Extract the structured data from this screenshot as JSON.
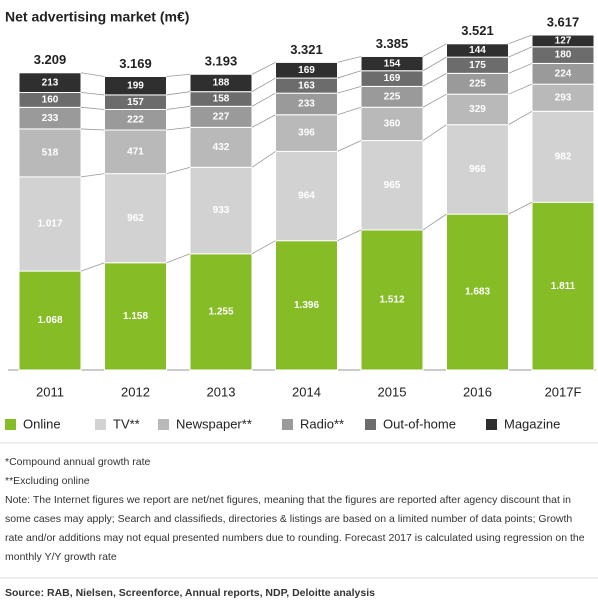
{
  "chart_data": {
    "type": "stacked-bar",
    "title": "Net advertising market (m€)",
    "categories": [
      "2011",
      "2012",
      "2013",
      "2014",
      "2015",
      "2016",
      "2017F"
    ],
    "series": [
      {
        "name": "Online",
        "color": "#86bc25",
        "values": [
          1068,
          1158,
          1255,
          1396,
          1512,
          1683,
          1811
        ],
        "value_labels": [
          "1.068",
          "1.158",
          "1.255",
          "1.396",
          "1.512",
          "1.683",
          "1.811"
        ]
      },
      {
        "name": "TV**",
        "color": "#d2d2d2",
        "values": [
          1017,
          962,
          933,
          964,
          965,
          966,
          982
        ],
        "value_labels": [
          "1.017",
          "962",
          "933",
          "964",
          "965",
          "966",
          "982"
        ]
      },
      {
        "name": "Newspaper**",
        "color": "#b9b9b9",
        "values": [
          518,
          471,
          432,
          396,
          360,
          329,
          293
        ],
        "value_labels": [
          "518",
          "471",
          "432",
          "396",
          "360",
          "329",
          "293"
        ]
      },
      {
        "name": "Radio**",
        "color": "#9a9a9a",
        "values": [
          233,
          222,
          227,
          233,
          225,
          225,
          224
        ],
        "value_labels": [
          "233",
          "222",
          "227",
          "233",
          "225",
          "225",
          "224"
        ]
      },
      {
        "name": "Out-of-home",
        "color": "#6c6c6c",
        "values": [
          160,
          157,
          158,
          163,
          169,
          175,
          180
        ],
        "value_labels": [
          "160",
          "157",
          "158",
          "163",
          "169",
          "175",
          "180"
        ]
      },
      {
        "name": "Magazine",
        "color": "#2f2f2f",
        "values": [
          213,
          199,
          188,
          169,
          154,
          144,
          127
        ],
        "value_labels": [
          "213",
          "199",
          "188",
          "169",
          "154",
          "144",
          "127"
        ]
      }
    ],
    "totals": {
      "values": [
        3209,
        3169,
        3193,
        3321,
        3385,
        3521,
        3617
      ],
      "value_labels": [
        "3.209",
        "3.169",
        "3.193",
        "3.321",
        "3.385",
        "3.521",
        "3.617"
      ]
    },
    "notes": [
      "*Compound annual growth rate",
      "**Excluding online",
      "Note: The Internet figures we report are net/net figures, meaning that the figures are reported after agency discount that in",
      "some cases may apply; Search and classifieds, directories & listings are based on a limited number of data points; Growth",
      "rate and/or additions may not equal presented numbers due to rounding. Forecast 2017 is calculated using regression on the",
      "monthly Y/Y growth rate"
    ],
    "source": "Source: RAB, Nielsen, Screenforce, Annual reports, NDP, Deloitte analysis"
  }
}
